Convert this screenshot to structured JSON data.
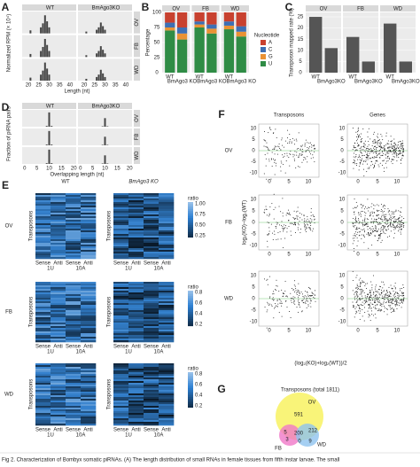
{
  "panel_labels": [
    "A",
    "B",
    "C",
    "D",
    "E",
    "F",
    "G"
  ],
  "panel_a": {
    "facets": [
      "WT",
      "BmAgo3KO"
    ],
    "rows": [
      "OV",
      "FB",
      "WD"
    ],
    "ylabel": "Normalized RPM (× 10⁴)",
    "xlabel": "Length (nt)",
    "xticks": [
      20,
      25,
      30,
      35,
      40
    ]
  },
  "panel_d": {
    "facets": [
      "WT",
      "BmAgo3KO"
    ],
    "rows": [
      "OV",
      "FB",
      "WD"
    ],
    "ylabel": "Fraction of piRNA pairs",
    "xlabel": "Overlapping length (nt)",
    "xticks": [
      0,
      5,
      10,
      15,
      20
    ]
  },
  "panel_e": {
    "columns": [
      "WT",
      "BmAgo3 KO"
    ],
    "rows": [
      "OV",
      "FB",
      "WD"
    ],
    "ylabel": "Transposons",
    "xlabels": [
      "Sense",
      "Anti",
      "Sense",
      "Anti"
    ],
    "groups": [
      "1U",
      "10A"
    ],
    "legend_title": "ratio",
    "legend_ticks": [
      [
        "1.00",
        "0.75",
        "0.50",
        "0.25"
      ],
      [
        "0.8",
        "0.6",
        "0.4",
        "0.2"
      ],
      [
        "0.8",
        "0.6",
        "0.4",
        "0.2"
      ]
    ]
  },
  "panel_f": {
    "columns": [
      "Transposons",
      "Genes"
    ],
    "rows": [
      "OV",
      "FB",
      "WD"
    ],
    "ylabel": "log₂(KO)−log₂(WT)",
    "xlabel": "(log₂(KO)+log₂(WT))/2",
    "yticks": [
      "10",
      "5",
      "0",
      "-5",
      "-10"
    ],
    "xticks": [
      "0",
      "5",
      "10"
    ]
  },
  "panel_g": {
    "title": "Transposons (total 1811)",
    "sets": [
      "OV",
      "FB",
      "WD"
    ],
    "counts": [
      591,
      212,
      200,
      5,
      3,
      0,
      9
    ]
  },
  "chart_data": [
    {
      "type": "bar",
      "stacked": true,
      "ylabel": "Percentage",
      "legend_title": "Nucleotide",
      "facets": [
        "OV",
        "FB",
        "WD"
      ],
      "categories": [
        "WT",
        "BmAgo3 KO",
        "WT",
        "BmAgo3 KO",
        "WT",
        "BmAgo3 KO"
      ],
      "series": [
        {
          "name": "A",
          "color": "#c8412f",
          "values": [
            17,
            25,
            15,
            20,
            15,
            23
          ]
        },
        {
          "name": "C",
          "color": "#3d6fb4",
          "values": [
            8,
            10,
            5,
            7,
            7,
            9
          ]
        },
        {
          "name": "G",
          "color": "#e99234",
          "values": [
            5,
            10,
            5,
            8,
            6,
            8
          ]
        },
        {
          "name": "U",
          "color": "#2f8c45",
          "values": [
            70,
            55,
            75,
            65,
            72,
            60
          ]
        }
      ],
      "ylim": [
        0,
        100
      ],
      "yticks": [
        0,
        25,
        50,
        75,
        100
      ]
    },
    {
      "type": "bar",
      "ylabel": "Transposon mapped rate (%)",
      "color": "#555555",
      "facets": [
        "OV",
        "FB",
        "WD"
      ],
      "categories": [
        "WT",
        "BmAgo3KO",
        "WT",
        "BmAgo3KO",
        "WT",
        "BmAgo3KO"
      ],
      "values": [
        25,
        11,
        16,
        5,
        22,
        5
      ],
      "ylim": [
        0,
        27
      ],
      "yticks": [
        0,
        5,
        10,
        15,
        20,
        25
      ]
    }
  ],
  "caption": "Fig 2. Characterization of Bombyx somatic piRNAs. (A) The length distribution of small RNAs in female tissues from fifth instar larvae. The small"
}
